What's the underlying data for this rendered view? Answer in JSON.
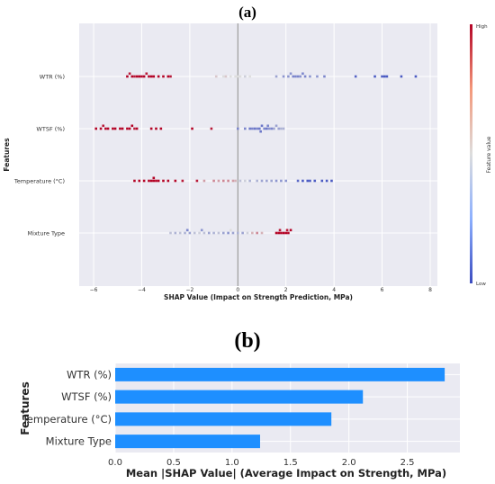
{
  "chart_data": [
    {
      "panel_label": "(a)",
      "type": "scatter",
      "subtype": "shap-beeswarm",
      "xlabel": "SHAP Value (Impact on Strength Prediction, MPa)",
      "ylabel": "Features",
      "xlim": [
        -6.6,
        8.3
      ],
      "xticks": [
        -6,
        -4,
        -2,
        0,
        2,
        4,
        6,
        8
      ],
      "xtick_labels": [
        "−6",
        "−4",
        "−2",
        "0",
        "2",
        "4",
        "6",
        "8"
      ],
      "grid": true,
      "zero_line": true,
      "colorbar": {
        "label": "Feature value",
        "high_label": "High",
        "low_label": "Low",
        "low_color": "#3b4cc0",
        "mid_color": "#dddddd",
        "high_color": "#b40426"
      },
      "features": [
        {
          "name": "WTR (%)",
          "points": [
            [
              -4.6,
              1
            ],
            [
              -4.4,
              1
            ],
            [
              -4.2,
              1
            ],
            [
              -4.1,
              1
            ],
            [
              -4.0,
              1
            ],
            [
              -3.9,
              1
            ],
            [
              -3.7,
              1
            ],
            [
              -3.6,
              1
            ],
            [
              -3.5,
              1
            ],
            [
              -3.3,
              1
            ],
            [
              -3.1,
              1
            ],
            [
              -2.9,
              1
            ],
            [
              -4.5,
              0.95
            ],
            [
              -4.3,
              0.95
            ],
            [
              -3.8,
              0.95
            ],
            [
              -2.8,
              0.95
            ],
            [
              -0.9,
              0.55
            ],
            [
              -0.6,
              0.5
            ],
            [
              -0.3,
              0.5
            ],
            [
              -0.1,
              0.5
            ],
            [
              0.1,
              0.5
            ],
            [
              0.3,
              0.45
            ],
            [
              0.5,
              0.5
            ],
            [
              -0.5,
              0.55
            ],
            [
              0.0,
              0.5
            ],
            [
              1.6,
              0.3
            ],
            [
              1.9,
              0.25
            ],
            [
              2.1,
              0.25
            ],
            [
              2.3,
              0.2
            ],
            [
              2.4,
              0.2
            ],
            [
              2.5,
              0.2
            ],
            [
              2.6,
              0.25
            ],
            [
              2.8,
              0.2
            ],
            [
              3.0,
              0.25
            ],
            [
              3.3,
              0.25
            ],
            [
              3.6,
              0.2
            ],
            [
              2.2,
              0.25
            ],
            [
              2.7,
              0.2
            ],
            [
              4.9,
              0.08
            ],
            [
              5.7,
              0.05
            ],
            [
              6.1,
              0.05
            ],
            [
              6.2,
              0.05
            ],
            [
              6.8,
              0.05
            ],
            [
              7.4,
              0.05
            ],
            [
              6.0,
              0.05
            ]
          ]
        },
        {
          "name": "WTSF (%)",
          "points": [
            [
              -5.9,
              1
            ],
            [
              -5.7,
              1
            ],
            [
              -5.5,
              1
            ],
            [
              -5.4,
              1
            ],
            [
              -5.2,
              1
            ],
            [
              -5.1,
              1
            ],
            [
              -4.9,
              1
            ],
            [
              -4.8,
              1
            ],
            [
              -4.6,
              1
            ],
            [
              -4.5,
              1
            ],
            [
              -4.4,
              1
            ],
            [
              -4.2,
              1
            ],
            [
              -3.6,
              1
            ],
            [
              -3.4,
              1
            ],
            [
              -3.2,
              1
            ],
            [
              -1.9,
              1
            ],
            [
              -1.1,
              0.95
            ],
            [
              -4.3,
              0.95
            ],
            [
              -5.6,
              0.95
            ],
            [
              0.0,
              0.2
            ],
            [
              0.3,
              0.2
            ],
            [
              0.5,
              0.15
            ],
            [
              0.7,
              0.15
            ],
            [
              0.8,
              0.2
            ],
            [
              0.9,
              0.15
            ],
            [
              1.0,
              0.15
            ],
            [
              1.1,
              0.2
            ],
            [
              1.2,
              0.15
            ],
            [
              1.3,
              0.25
            ],
            [
              1.4,
              0.2
            ],
            [
              1.5,
              0.3
            ],
            [
              1.6,
              0.3
            ],
            [
              1.7,
              0.3
            ],
            [
              1.8,
              0.35
            ],
            [
              1.9,
              0.35
            ],
            [
              0.6,
              0.2
            ],
            [
              1.25,
              0.2
            ],
            [
              0.95,
              0.15
            ]
          ]
        },
        {
          "name": "Temperature (°C)",
          "points": [
            [
              -4.3,
              1
            ],
            [
              -4.1,
              1
            ],
            [
              -3.9,
              1
            ],
            [
              -3.7,
              1
            ],
            [
              -3.6,
              1
            ],
            [
              -3.5,
              1
            ],
            [
              -3.4,
              1
            ],
            [
              -3.3,
              1
            ],
            [
              -3.1,
              1
            ],
            [
              -2.9,
              1
            ],
            [
              -2.6,
              1
            ],
            [
              -2.3,
              0.95
            ],
            [
              -1.7,
              0.95
            ],
            [
              -3.5,
              1
            ],
            [
              -1.4,
              0.65
            ],
            [
              -1.0,
              0.7
            ],
            [
              -0.8,
              0.65
            ],
            [
              -0.6,
              0.7
            ],
            [
              -0.4,
              0.7
            ],
            [
              -0.2,
              0.65
            ],
            [
              -0.1,
              0.6
            ],
            [
              0.1,
              0.4
            ],
            [
              0.3,
              0.45
            ],
            [
              0.5,
              0.35
            ],
            [
              0.8,
              0.35
            ],
            [
              1.0,
              0.3
            ],
            [
              1.2,
              0.3
            ],
            [
              1.4,
              0.3
            ],
            [
              1.6,
              0.25
            ],
            [
              1.8,
              0.25
            ],
            [
              2.0,
              0.25
            ],
            [
              2.5,
              0.1
            ],
            [
              2.7,
              0.05
            ],
            [
              2.9,
              0.05
            ],
            [
              3.0,
              0.05
            ],
            [
              3.2,
              0.05
            ],
            [
              3.5,
              0.05
            ],
            [
              3.7,
              0.05
            ],
            [
              3.9,
              0.05
            ]
          ]
        },
        {
          "name": "Mixture Type",
          "points": [
            [
              -2.8,
              0.4
            ],
            [
              -2.6,
              0.35
            ],
            [
              -2.4,
              0.4
            ],
            [
              -2.2,
              0.35
            ],
            [
              -2.0,
              0.3
            ],
            [
              -1.8,
              0.4
            ],
            [
              -1.6,
              0.45
            ],
            [
              -1.4,
              0.4
            ],
            [
              -1.2,
              0.3
            ],
            [
              -1.0,
              0.35
            ],
            [
              -0.8,
              0.4
            ],
            [
              -0.6,
              0.3
            ],
            [
              -0.4,
              0.25
            ],
            [
              -0.2,
              0.3
            ],
            [
              0.0,
              0.35
            ],
            [
              0.2,
              0.3
            ],
            [
              0.4,
              0.45
            ],
            [
              0.6,
              0.6
            ],
            [
              0.8,
              0.7
            ],
            [
              1.0,
              0.6
            ],
            [
              -1.5,
              0.25
            ],
            [
              -2.1,
              0.2
            ],
            [
              -0.3,
              0.5
            ],
            [
              1.6,
              1
            ],
            [
              1.7,
              1
            ],
            [
              1.8,
              1
            ],
            [
              1.9,
              1
            ],
            [
              2.0,
              1
            ],
            [
              2.1,
              1
            ],
            [
              2.2,
              1
            ],
            [
              1.75,
              0.95
            ],
            [
              2.05,
              0.95
            ]
          ]
        }
      ]
    },
    {
      "panel_label": "(b)",
      "type": "bar",
      "orientation": "horizontal",
      "xlabel": "Mean |SHAP Value| (Average Impact on Strength, MPa)",
      "ylabel": "Features",
      "categories": [
        "WTR (%)",
        "WTSF (%)",
        "Temperature (°C)",
        "Mixture Type"
      ],
      "values": [
        2.82,
        2.12,
        1.85,
        1.24
      ],
      "xlim": [
        0,
        2.95
      ],
      "xticks": [
        0.0,
        0.5,
        1.0,
        1.5,
        2.0,
        2.5
      ],
      "xtick_labels": [
        "0.0",
        "0.5",
        "1.0",
        "1.5",
        "2.0",
        "2.5"
      ],
      "bar_color": "#1e8fff",
      "grid": true
    }
  ]
}
